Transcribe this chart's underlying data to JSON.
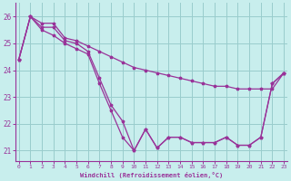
{
  "xlabel": "Windchill (Refroidissement éolien,°C)",
  "background_color": "#c8eeed",
  "line_color": "#993399",
  "grid_color": "#99cccc",
  "x_ticks": [
    0,
    1,
    2,
    3,
    4,
    5,
    6,
    7,
    8,
    9,
    10,
    11,
    12,
    13,
    14,
    15,
    16,
    17,
    18,
    19,
    20,
    21,
    22,
    23
  ],
  "y_ticks": [
    21,
    22,
    23,
    24,
    25,
    26
  ],
  "ylim": [
    20.6,
    26.5
  ],
  "xlim": [
    -0.3,
    23.3
  ],
  "line1": [
    24.4,
    26.0,
    25.6,
    25.6,
    25.1,
    25.0,
    24.7,
    23.7,
    22.7,
    22.1,
    21.0,
    21.8,
    21.1,
    21.5,
    21.5,
    21.3,
    21.3,
    21.3,
    21.5,
    21.2,
    21.2,
    21.5,
    23.5,
    23.9
  ],
  "line2": [
    24.4,
    26.0,
    25.75,
    25.75,
    25.2,
    25.1,
    24.9,
    24.7,
    24.5,
    24.3,
    24.1,
    24.0,
    23.9,
    23.8,
    23.7,
    23.6,
    23.5,
    23.4,
    23.4,
    23.3,
    23.3,
    23.3,
    23.3,
    23.9
  ],
  "line3": [
    24.4,
    26.0,
    25.5,
    25.3,
    25.0,
    24.8,
    24.6,
    23.5,
    22.5,
    21.5,
    21.0,
    21.8,
    21.1,
    21.5,
    21.5,
    21.3,
    21.3,
    21.3,
    21.5,
    21.2,
    21.2,
    21.5,
    23.5,
    23.9
  ]
}
